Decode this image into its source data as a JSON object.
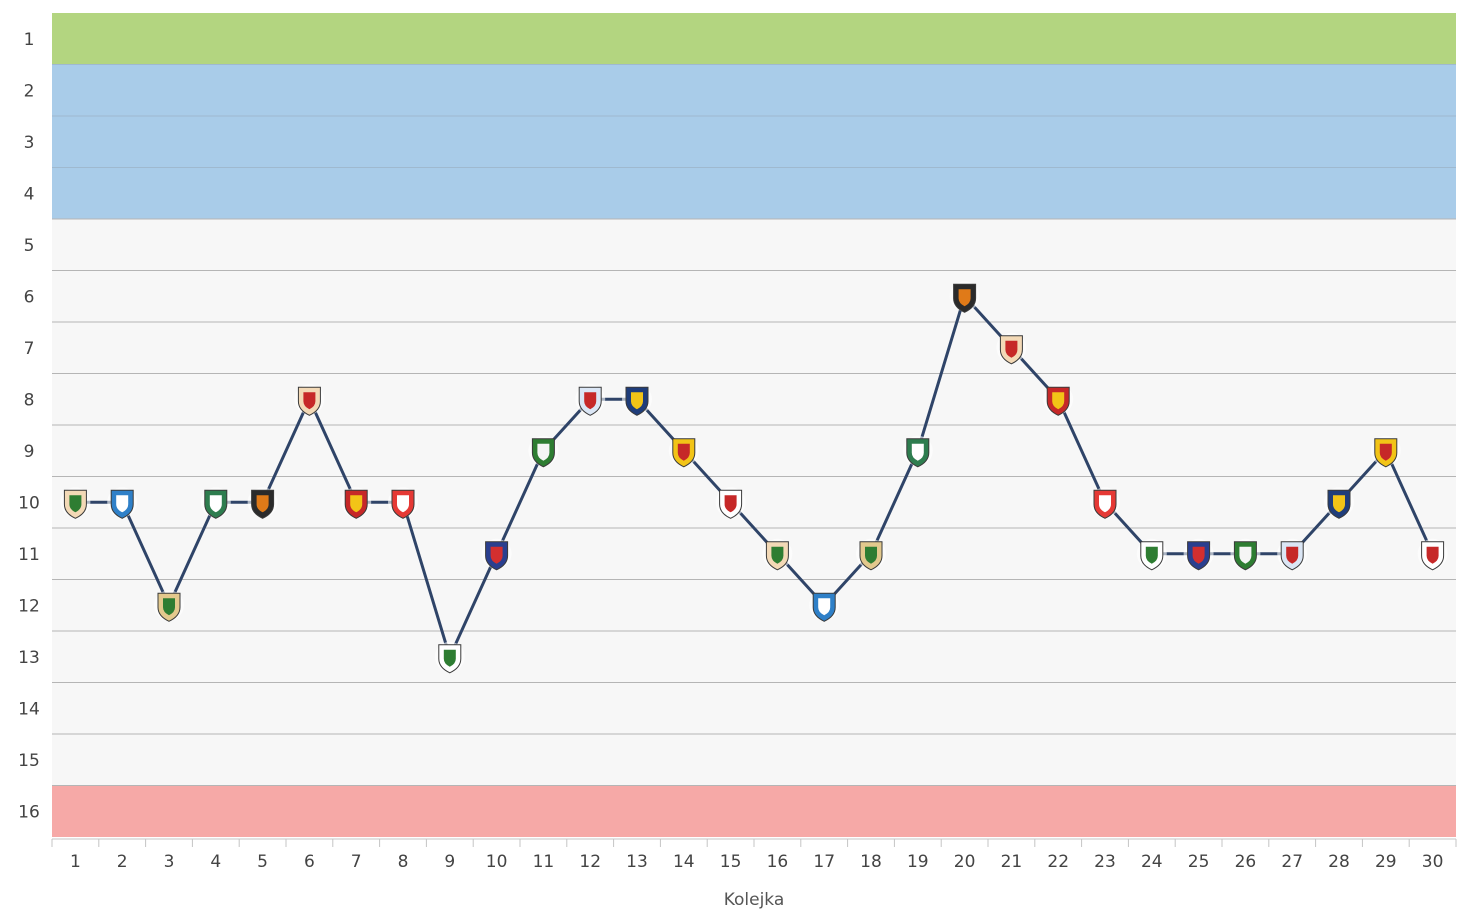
{
  "chart_data": {
    "type": "line",
    "xlabel": "Kolejka",
    "ylabel": "",
    "x": [
      1,
      2,
      3,
      4,
      5,
      6,
      7,
      8,
      9,
      10,
      11,
      12,
      13,
      14,
      15,
      16,
      17,
      18,
      19,
      20,
      21,
      22,
      23,
      24,
      25,
      26,
      27,
      28,
      29,
      30
    ],
    "series": [
      {
        "values": [
          10,
          10,
          12,
          10,
          10,
          8,
          10,
          10,
          13,
          11,
          9,
          8,
          8,
          9,
          10,
          11,
          12,
          11,
          9,
          6,
          7,
          8,
          10,
          11,
          11,
          11,
          11,
          10,
          9,
          11
        ],
        "color": "#2f4468"
      }
    ],
    "ylim": [
      1,
      16
    ],
    "y_inverted": true,
    "y_ticks": [
      "1",
      "2",
      "3",
      "4",
      "5",
      "6",
      "7",
      "8",
      "9",
      "10",
      "11",
      "12",
      "13",
      "14",
      "15",
      "16"
    ],
    "x_ticks": [
      "1",
      "2",
      "3",
      "4",
      "5",
      "6",
      "7",
      "8",
      "9",
      "10",
      "11",
      "12",
      "13",
      "14",
      "15",
      "16",
      "17",
      "18",
      "19",
      "20",
      "21",
      "22",
      "23",
      "24",
      "25",
      "26",
      "27",
      "28",
      "29",
      "30"
    ],
    "grid": true,
    "bands": [
      {
        "from": 1,
        "to": 1,
        "color": "#b3d580"
      },
      {
        "from": 2,
        "to": 4,
        "color": "#a9cce9"
      },
      {
        "from": 5,
        "to": 15,
        "color": "#f7f7f7"
      },
      {
        "from": 16,
        "to": 16,
        "color": "#f6a9a7"
      }
    ],
    "markers": [
      {
        "icon": "club-crest-icon",
        "colors": [
          "#f3d9b6",
          "#2e7d32"
        ]
      },
      {
        "icon": "club-crest-icon",
        "colors": [
          "#2f80c8",
          "#ffffff"
        ]
      },
      {
        "icon": "club-crest-icon",
        "colors": [
          "#e3c98d",
          "#2e7d32"
        ]
      },
      {
        "icon": "club-crest-icon",
        "colors": [
          "#2e7d4f",
          "#ffffff"
        ]
      },
      {
        "icon": "club-crest-icon",
        "colors": [
          "#2b2b2b",
          "#e07a18"
        ]
      },
      {
        "icon": "club-crest-icon",
        "colors": [
          "#f3d9b6",
          "#c62828"
        ]
      },
      {
        "icon": "club-crest-icon",
        "colors": [
          "#c62828",
          "#f2c417"
        ]
      },
      {
        "icon": "club-crest-icon",
        "colors": [
          "#e53935",
          "#ffffff"
        ]
      },
      {
        "icon": "club-crest-icon",
        "colors": [
          "#ffffff",
          "#2e7d32"
        ]
      },
      {
        "icon": "club-crest-icon",
        "colors": [
          "#2a3f8f",
          "#d32f2f"
        ]
      },
      {
        "icon": "club-crest-icon",
        "colors": [
          "#2e7d32",
          "#f5f5f5"
        ]
      },
      {
        "icon": "club-crest-icon",
        "colors": [
          "#dbe6f5",
          "#c62828"
        ]
      },
      {
        "icon": "club-crest-icon",
        "colors": [
          "#1f3d7a",
          "#f2c417"
        ]
      },
      {
        "icon": "club-crest-icon",
        "colors": [
          "#f2c417",
          "#c62828"
        ]
      },
      {
        "icon": "club-crest-icon",
        "colors": [
          "#ffffff",
          "#c62828"
        ]
      },
      {
        "icon": "club-crest-icon",
        "colors": [
          "#f3d9b6",
          "#2e7d32"
        ]
      },
      {
        "icon": "club-crest-icon",
        "colors": [
          "#2f80c8",
          "#ffffff"
        ]
      },
      {
        "icon": "club-crest-icon",
        "colors": [
          "#e3c98d",
          "#2e7d32"
        ]
      },
      {
        "icon": "club-crest-icon",
        "colors": [
          "#2e7d4f",
          "#ffffff"
        ]
      },
      {
        "icon": "club-crest-icon",
        "colors": [
          "#2b2b2b",
          "#e07a18"
        ]
      },
      {
        "icon": "club-crest-icon",
        "colors": [
          "#f3d9b6",
          "#c62828"
        ]
      },
      {
        "icon": "club-crest-icon",
        "colors": [
          "#c62828",
          "#f2c417"
        ]
      },
      {
        "icon": "club-crest-icon",
        "colors": [
          "#e53935",
          "#ffffff"
        ]
      },
      {
        "icon": "club-crest-icon",
        "colors": [
          "#ffffff",
          "#2e7d32"
        ]
      },
      {
        "icon": "club-crest-icon",
        "colors": [
          "#2a3f8f",
          "#d32f2f"
        ]
      },
      {
        "icon": "club-crest-icon",
        "colors": [
          "#2e7d32",
          "#f5f5f5"
        ]
      },
      {
        "icon": "club-crest-icon",
        "colors": [
          "#dbe6f5",
          "#c62828"
        ]
      },
      {
        "icon": "club-crest-icon",
        "colors": [
          "#1f3d7a",
          "#f2c417"
        ]
      },
      {
        "icon": "club-crest-icon",
        "colors": [
          "#f2c417",
          "#c62828"
        ]
      },
      {
        "icon": "club-crest-icon",
        "colors": [
          "#ffffff",
          "#c62828"
        ]
      }
    ]
  }
}
